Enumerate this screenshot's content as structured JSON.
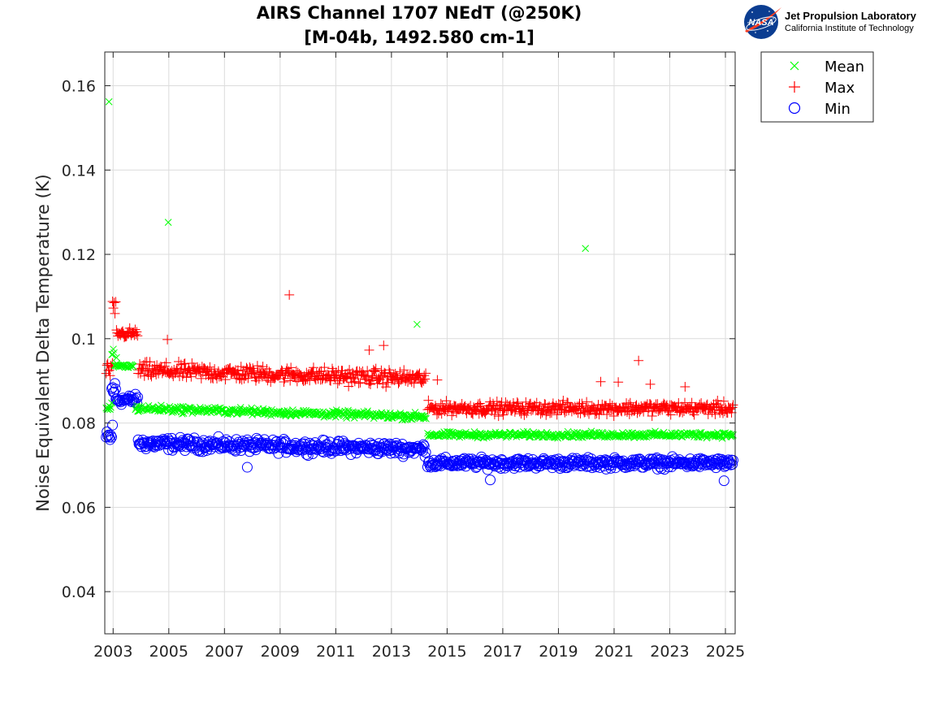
{
  "logo": {
    "agency_mark": "NASA",
    "title": "Jet Propulsion Laboratory",
    "subtitle": "California Institute of Technology",
    "colors": {
      "globe": "#0b3d91",
      "swoosh": "#fc3d21"
    }
  },
  "chart_data": {
    "type": "scatter",
    "title_lines": [
      "AIRS Channel 1707 NEdT (@250K)",
      "[M-04b, 1492.580 cm-1]"
    ],
    "xlabel": "",
    "ylabel": "Noise Equivalent Delta Temperature (K)",
    "xlim": [
      2002.7,
      2025.35
    ],
    "ylim": [
      0.03,
      0.168
    ],
    "x_ticks": [
      2003,
      2005,
      2007,
      2009,
      2011,
      2013,
      2015,
      2017,
      2019,
      2021,
      2023,
      2025
    ],
    "y_ticks": [
      0.04,
      0.06,
      0.08,
      0.1,
      0.12,
      0.14,
      0.16
    ],
    "y_tick_labels": [
      "0.04",
      "0.06",
      "0.08",
      "0.1",
      "0.12",
      "0.14",
      "0.16"
    ],
    "grid": true,
    "legend_position": "outside-top-right",
    "series": [
      {
        "name": "Mean",
        "marker": "x",
        "color": "#00ff00",
        "segments": [
          {
            "x": [
              2002.75,
              2002.95
            ],
            "y": 0.0835,
            "spread": 0.002
          },
          {
            "x": [
              2002.95,
              2003.05
            ],
            "y": 0.096,
            "spread": 0.004
          },
          {
            "x": [
              2003.05,
              2003.75
            ],
            "y": 0.0935,
            "spread": 0.0008
          },
          {
            "x": [
              2003.8,
              2014.25
            ],
            "y": [
              0.0835,
              0.0815
            ],
            "spread": 0.0012
          },
          {
            "x": [
              2014.3,
              2025.3
            ],
            "y": 0.0772,
            "spread": 0.001
          }
        ],
        "outliers": [
          {
            "x": 2002.85,
            "y": 0.1562
          },
          {
            "x": 2004.98,
            "y": 0.1276
          },
          {
            "x": 2019.97,
            "y": 0.1214
          },
          {
            "x": 2013.92,
            "y": 0.1034
          },
          {
            "x": 2003.12,
            "y": 0.0955
          }
        ]
      },
      {
        "name": "Max",
        "marker": "+",
        "color": "#ff0000",
        "segments": [
          {
            "x": [
              2002.75,
              2002.98
            ],
            "y": 0.0925,
            "spread": 0.0025
          },
          {
            "x": [
              2002.98,
              2003.12
            ],
            "y": 0.107,
            "spread": 0.004
          },
          {
            "x": [
              2003.12,
              2003.9
            ],
            "y": 0.1012,
            "spread": 0.0018
          },
          {
            "x": [
              2003.9,
              2014.25
            ],
            "y": [
              0.0925,
              0.0905
            ],
            "spread": 0.0028
          },
          {
            "x": [
              2014.3,
              2025.3
            ],
            "y": 0.0835,
            "spread": 0.0022
          }
        ],
        "outliers": [
          {
            "x": 2009.33,
            "y": 0.1104
          },
          {
            "x": 2004.95,
            "y": 0.0998
          },
          {
            "x": 2021.88,
            "y": 0.0948
          },
          {
            "x": 2021.15,
            "y": 0.0897
          },
          {
            "x": 2022.3,
            "y": 0.0892
          },
          {
            "x": 2020.52,
            "y": 0.0898
          },
          {
            "x": 2023.55,
            "y": 0.0886
          },
          {
            "x": 2014.65,
            "y": 0.0902
          },
          {
            "x": 2012.72,
            "y": 0.0984
          },
          {
            "x": 2012.2,
            "y": 0.0973
          }
        ]
      },
      {
        "name": "Min",
        "marker": "o",
        "color": "#0000ff",
        "segments": [
          {
            "x": [
              2002.75,
              2002.95
            ],
            "y": 0.0765,
            "spread": 0.0025
          },
          {
            "x": [
              2002.95,
              2003.1
            ],
            "y": 0.088,
            "spread": 0.003
          },
          {
            "x": [
              2003.1,
              2003.9
            ],
            "y": 0.0855,
            "spread": 0.0018
          },
          {
            "x": [
              2003.9,
              2014.25
            ],
            "y": [
              0.0752,
              0.0738
            ],
            "spread": 0.0022
          },
          {
            "x": [
              2014.3,
              2025.3
            ],
            "y": 0.0705,
            "spread": 0.0018
          }
        ],
        "outliers": [
          {
            "x": 2007.82,
            "y": 0.0695
          },
          {
            "x": 2016.55,
            "y": 0.0665
          },
          {
            "x": 2024.95,
            "y": 0.0663
          },
          {
            "x": 2002.98,
            "y": 0.0795
          }
        ]
      }
    ]
  }
}
